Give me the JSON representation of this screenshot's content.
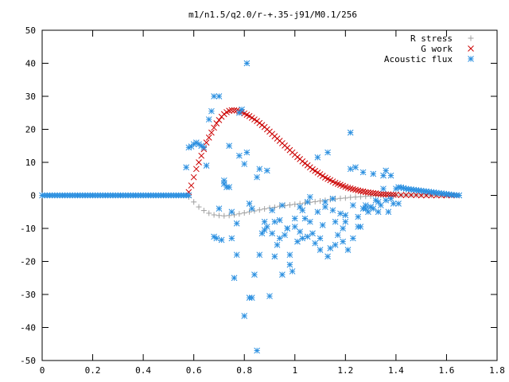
{
  "chart_data": {
    "type": "scatter",
    "title": "m1/n1.5/q2.0/r-+.35-j91/M0.1/256",
    "xlabel": "",
    "ylabel": "",
    "xlim": [
      0,
      1.8
    ],
    "ylim": [
      -50,
      50
    ],
    "x_ticks": [
      "0",
      "0.2",
      "0.4",
      "0.6",
      "0.8",
      "1",
      "1.2",
      "1.4",
      "1.6",
      "1.8"
    ],
    "y_ticks": [
      "50",
      "40",
      "30",
      "20",
      "10",
      "0",
      "-10",
      "-20",
      "-30",
      "-40",
      "-50"
    ],
    "grid": false,
    "legend_position": "top-right",
    "series": [
      {
        "name": "R stress",
        "color": "#a0a0a0",
        "marker": "plus",
        "x": [
          0.58,
          0.6,
          0.62,
          0.64,
          0.66,
          0.68,
          0.7,
          0.72,
          0.74,
          0.76,
          0.78,
          0.8,
          0.82,
          0.84,
          0.86,
          0.88,
          0.9,
          0.92,
          0.94,
          0.96,
          0.98,
          1.0,
          1.02,
          1.04,
          1.06,
          1.08,
          1.1,
          1.12,
          1.14,
          1.16,
          1.18,
          1.2,
          1.22,
          1.24,
          1.26,
          1.28,
          1.3,
          1.32,
          1.34,
          1.36,
          1.38,
          1.4,
          1.42,
          1.44,
          1.46,
          1.48,
          1.5,
          1.52,
          1.54,
          1.56,
          1.58,
          1.6,
          1.62,
          1.64
        ],
        "y": [
          -0.5,
          -2.0,
          -3.5,
          -4.6,
          -5.4,
          -5.9,
          -6.1,
          -6.2,
          -6.1,
          -5.9,
          -5.6,
          -5.3,
          -5.0,
          -4.7,
          -4.4,
          -4.1,
          -3.8,
          -3.6,
          -3.3,
          -3.1,
          -2.9,
          -2.7,
          -2.5,
          -2.3,
          -2.1,
          -1.9,
          -1.7,
          -1.5,
          -1.3,
          -1.1,
          -0.9,
          -0.8,
          -0.6,
          -0.5,
          -0.4,
          -0.3,
          -0.2,
          -0.1,
          0.0,
          0.0,
          0.1,
          0.1,
          0.1,
          0.1,
          0.1,
          0.1,
          0.1,
          0.1,
          0.0,
          0.0,
          0.0,
          0.0,
          0.0,
          0.0
        ]
      },
      {
        "name": "G work",
        "color": "#cc0000",
        "marker": "cross",
        "x": [
          0.58,
          0.59,
          0.6,
          0.61,
          0.62,
          0.63,
          0.64,
          0.65,
          0.66,
          0.67,
          0.68,
          0.69,
          0.7,
          0.71,
          0.72,
          0.73,
          0.74,
          0.75,
          0.76,
          0.77,
          0.78,
          0.79,
          0.8,
          0.81,
          0.82,
          0.83,
          0.84,
          0.85,
          0.86,
          0.87,
          0.88,
          0.89,
          0.9,
          0.91,
          0.92,
          0.93,
          0.94,
          0.95,
          0.96,
          0.97,
          0.98,
          0.99,
          1.0,
          1.01,
          1.02,
          1.03,
          1.04,
          1.05,
          1.06,
          1.07,
          1.08,
          1.09,
          1.1,
          1.11,
          1.12,
          1.13,
          1.14,
          1.15,
          1.16,
          1.17,
          1.18,
          1.19,
          1.2,
          1.21,
          1.22,
          1.23,
          1.24,
          1.25,
          1.26,
          1.27,
          1.28,
          1.29,
          1.3,
          1.31,
          1.32,
          1.33,
          1.34,
          1.35,
          1.36,
          1.37,
          1.38,
          1.39,
          1.4,
          1.42,
          1.44,
          1.46,
          1.48,
          1.5,
          1.52,
          1.54,
          1.56,
          1.58,
          1.6,
          1.62,
          1.64
        ],
        "y": [
          1.0,
          3.0,
          5.5,
          8.0,
          10.0,
          12.0,
          14.0,
          16.0,
          17.5,
          19.0,
          20.5,
          21.8,
          22.8,
          23.8,
          24.6,
          25.2,
          25.6,
          25.8,
          25.8,
          25.7,
          25.5,
          25.2,
          24.8,
          24.4,
          24.0,
          23.5,
          23.0,
          22.5,
          21.9,
          21.3,
          20.7,
          20.0,
          19.3,
          18.6,
          17.9,
          17.2,
          16.5,
          15.8,
          15.1,
          14.4,
          13.7,
          13.0,
          12.3,
          11.6,
          11.0,
          10.3,
          9.7,
          9.1,
          8.5,
          7.9,
          7.4,
          6.9,
          6.4,
          5.9,
          5.4,
          5.0,
          4.6,
          4.2,
          3.8,
          3.5,
          3.2,
          2.9,
          2.6,
          2.3,
          2.1,
          1.9,
          1.7,
          1.5,
          1.3,
          1.2,
          1.0,
          0.9,
          0.8,
          0.7,
          0.6,
          0.5,
          0.4,
          0.4,
          0.3,
          0.3,
          0.2,
          0.2,
          0.2,
          0.1,
          0.1,
          0.1,
          0.1,
          0.0,
          0.0,
          0.0,
          0.0,
          0.0,
          0.0,
          0.0,
          0.0
        ]
      },
      {
        "name": "Acoustic flux",
        "color": "#2a8fe0",
        "marker": "star",
        "x": [
          0.0,
          0.01,
          0.02,
          0.03,
          0.04,
          0.05,
          0.06,
          0.07,
          0.08,
          0.09,
          0.1,
          0.11,
          0.12,
          0.13,
          0.14,
          0.15,
          0.16,
          0.17,
          0.18,
          0.19,
          0.2,
          0.21,
          0.22,
          0.23,
          0.24,
          0.25,
          0.26,
          0.27,
          0.28,
          0.29,
          0.3,
          0.31,
          0.32,
          0.33,
          0.34,
          0.35,
          0.36,
          0.37,
          0.38,
          0.39,
          0.4,
          0.41,
          0.42,
          0.43,
          0.44,
          0.45,
          0.46,
          0.47,
          0.48,
          0.49,
          0.5,
          0.51,
          0.52,
          0.53,
          0.54,
          0.55,
          0.56,
          0.57,
          0.58,
          0.57,
          0.58,
          0.59,
          0.6,
          0.61,
          0.62,
          0.63,
          0.64,
          0.65,
          0.66,
          0.67,
          0.68,
          0.69,
          0.7,
          0.71,
          0.72,
          0.73,
          0.74,
          0.75,
          0.76,
          0.77,
          0.78,
          0.79,
          0.8,
          0.81,
          0.82,
          0.83,
          0.84,
          0.85,
          0.86,
          0.87,
          0.88,
          0.89,
          0.9,
          0.91,
          0.92,
          0.93,
          0.94,
          0.95,
          0.96,
          0.97,
          0.98,
          0.99,
          1.0,
          1.01,
          1.02,
          1.03,
          1.04,
          1.05,
          1.06,
          1.07,
          1.08,
          1.09,
          1.1,
          1.11,
          1.12,
          1.13,
          1.14,
          1.15,
          1.16,
          1.17,
          1.18,
          1.19,
          1.2,
          1.21,
          1.22,
          1.23,
          1.24,
          1.25,
          1.26,
          1.27,
          1.28,
          1.29,
          1.3,
          1.31,
          1.32,
          1.33,
          1.34,
          1.35,
          1.36,
          1.37,
          1.38,
          1.39,
          1.4,
          1.41,
          1.42,
          1.43,
          1.44,
          1.45,
          1.46,
          1.47,
          1.48,
          1.49,
          1.5,
          1.51,
          1.52,
          1.53,
          1.54,
          1.55,
          1.56,
          1.57,
          1.58,
          1.59,
          1.6,
          1.61,
          1.62,
          1.63,
          1.64,
          1.65,
          0.68,
          0.72,
          0.75,
          0.78,
          0.81,
          0.83,
          0.86,
          0.89,
          0.92,
          0.95,
          0.98,
          1.02,
          1.05,
          1.09,
          1.12,
          1.15,
          1.19,
          1.22,
          1.25,
          1.28,
          1.31,
          1.35,
          1.38,
          1.41,
          0.7,
          0.74,
          0.77,
          0.8,
          0.82,
          0.85,
          0.88,
          0.91,
          0.94,
          0.97,
          1.0,
          1.03,
          1.06,
          1.1,
          1.13,
          1.16,
          1.2,
          1.23,
          1.27,
          1.3,
          1.33,
          1.36
        ],
        "y": [
          0,
          0,
          0,
          0,
          0,
          0,
          0,
          0,
          0,
          0,
          0,
          0,
          0,
          0,
          0,
          0,
          0,
          0,
          0,
          0,
          0,
          0,
          0,
          0,
          0,
          0,
          0,
          0,
          0,
          0,
          0,
          0,
          0,
          0,
          0,
          0,
          0,
          0,
          0,
          0,
          0,
          0,
          0,
          0,
          0,
          0,
          0,
          0,
          0,
          0,
          0,
          0,
          0,
          0,
          0,
          0,
          0,
          0,
          0,
          8.5,
          14.5,
          14.8,
          15.5,
          16.0,
          15.5,
          15.0,
          14.5,
          9.0,
          23.0,
          25.5,
          -12.5,
          -13.0,
          30.0,
          -13.5,
          3.5,
          2.5,
          15.0,
          -13.0,
          -25.0,
          -18.0,
          12.0,
          26.0,
          -36.5,
          40.0,
          -31.0,
          -31.0,
          -24.0,
          -47.0,
          -18.0,
          -11.5,
          -8.0,
          -9.5,
          -30.5,
          -11.5,
          -18.5,
          -15.0,
          -13.0,
          -24.0,
          -12.0,
          -10.0,
          -21.0,
          -23.0,
          -9.5,
          -14.0,
          -11.0,
          -13.0,
          -7.0,
          -12.5,
          -8.0,
          -11.5,
          -14.5,
          -5.0,
          -13.0,
          -9.0,
          -3.5,
          -18.5,
          -16.0,
          -4.5,
          -15.0,
          -12.0,
          -5.5,
          -14.0,
          -8.0,
          -16.5,
          19.0,
          -13.0,
          8.5,
          -6.5,
          -9.5,
          7.0,
          -4.0,
          -5.0,
          -3.5,
          6.5,
          -1.5,
          -5.0,
          -3.0,
          2.0,
          7.5,
          -5.0,
          6.0,
          -2.5,
          2.0,
          2.5,
          2.4,
          2.2,
          2.0,
          1.9,
          1.8,
          1.7,
          1.6,
          1.5,
          1.4,
          1.3,
          1.2,
          1.1,
          1.0,
          0.9,
          0.8,
          0.7,
          0.6,
          0.5,
          0.4,
          0.3,
          0.2,
          0.1,
          0.05,
          0.0,
          30.0,
          4.5,
          -5.0,
          25.0,
          13.0,
          -4.0,
          8.0,
          7.5,
          -8.0,
          -3.0,
          -18.0,
          -3.5,
          -2.0,
          11.5,
          -2.0,
          -1.0,
          -10.0,
          8.0,
          -9.5,
          -3.0,
          -4.0,
          6.0,
          -1.0,
          -2.5,
          -4.0,
          2.5,
          -8.5,
          9.5,
          -2.5,
          5.5,
          -10.5,
          -4.5,
          -7.5,
          -10.0,
          -7.0,
          -4.5,
          -0.5,
          -16.5,
          13.0,
          -8.0,
          -6.0,
          -3.0,
          -4.0,
          -3.5,
          -2.0,
          -1.5
        ]
      }
    ]
  }
}
